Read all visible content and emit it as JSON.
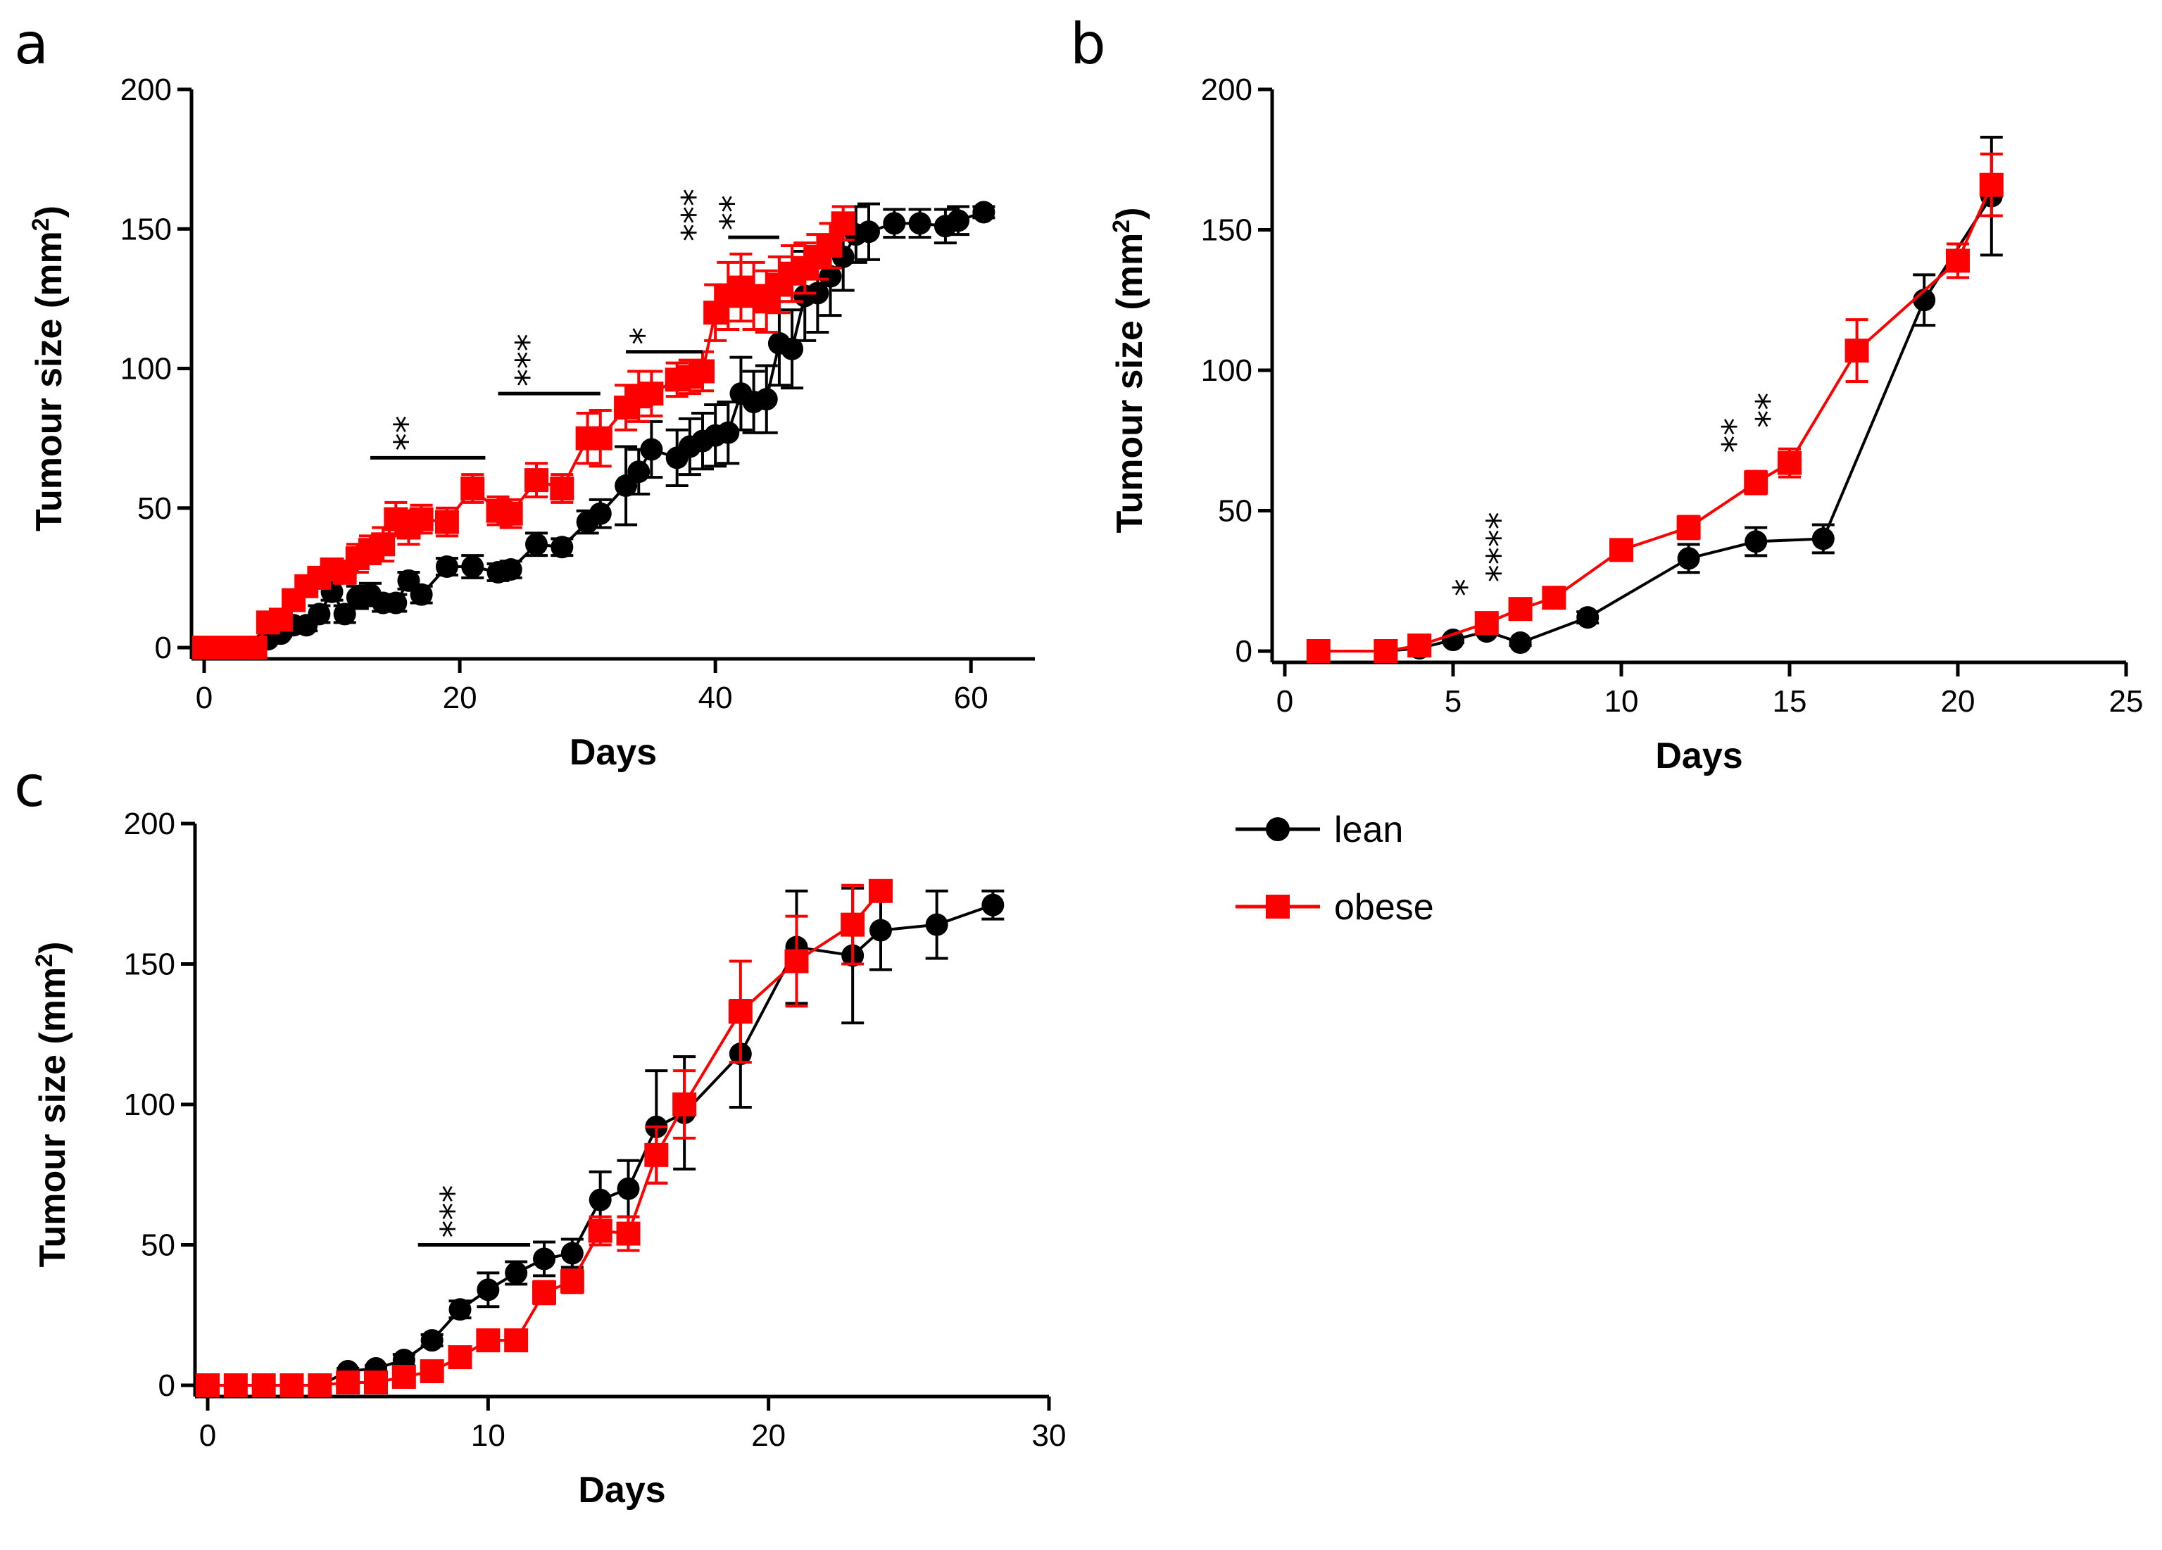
{
  "colors": {
    "lean": "#000000",
    "obese": "#ff0000",
    "axis": "#000000"
  },
  "legend": [
    {
      "key": "lean",
      "label": "lean",
      "marker": "circle"
    },
    {
      "key": "obese",
      "label": "obese",
      "marker": "square"
    }
  ],
  "chart_data": [
    {
      "panel": "a",
      "type": "line",
      "xlabel": "Days",
      "ylabel": "Tumour size (mm",
      "ylabel_sup": "2",
      "ylabel_close": ")",
      "xlim": [
        0,
        65
      ],
      "ylim": [
        0,
        200
      ],
      "xticks": [
        0,
        20,
        40,
        60
      ],
      "yticks": [
        0,
        50,
        100,
        150,
        200
      ],
      "series": [
        {
          "name": "lean",
          "x": [
            0,
            1,
            2,
            3,
            4,
            5,
            6,
            7,
            8,
            9,
            10,
            11,
            12,
            13,
            14,
            15,
            16,
            17,
            19,
            21,
            23,
            24,
            26,
            28,
            30,
            31,
            33,
            34,
            35,
            37,
            38,
            39,
            40,
            41,
            42,
            43,
            44,
            45,
            46,
            47,
            48,
            49,
            50,
            51,
            52,
            54,
            56,
            58,
            59,
            61
          ],
          "y": [
            0,
            0,
            0,
            0,
            0,
            3,
            5,
            8,
            8,
            12,
            20,
            12,
            18,
            19,
            16,
            16,
            24,
            19,
            29,
            29,
            27,
            28,
            37,
            36,
            45,
            48,
            58,
            63,
            71,
            68,
            72,
            74,
            76,
            77,
            91,
            88,
            89,
            109,
            107,
            126,
            127,
            133,
            140,
            148,
            149,
            152,
            152,
            151,
            153,
            156
          ],
          "err": [
            0,
            0,
            0,
            0,
            0,
            1,
            1,
            2,
            2,
            3,
            3,
            3,
            4,
            4,
            3,
            3,
            3,
            3,
            3,
            4,
            3,
            3,
            4,
            3,
            4,
            5,
            14,
            8,
            10,
            10,
            10,
            10,
            11,
            11,
            13,
            11,
            12,
            15,
            14,
            16,
            14,
            14,
            12,
            10,
            10,
            5,
            5,
            6,
            5,
            2
          ]
        },
        {
          "name": "obese",
          "x": [
            0,
            1,
            2,
            3,
            4,
            5,
            6,
            7,
            8,
            9,
            10,
            11,
            12,
            13,
            14,
            15,
            16,
            17,
            19,
            21,
            23,
            24,
            26,
            28,
            30,
            31,
            33,
            34,
            35,
            37,
            38,
            39,
            40,
            41,
            42,
            43,
            44,
            45,
            46,
            47,
            48,
            49,
            50
          ],
          "y": [
            0,
            0,
            0,
            0,
            0,
            9,
            10,
            17,
            22,
            25,
            28,
            27,
            32,
            35,
            37,
            46,
            43,
            46,
            45,
            57,
            49,
            48,
            60,
            57,
            75,
            75,
            86,
            90,
            91,
            96,
            97,
            99,
            120,
            126,
            129,
            126,
            124,
            130,
            134,
            136,
            140,
            144,
            152
          ],
          "err": [
            0,
            0,
            0,
            0,
            0,
            2,
            3,
            3,
            3,
            3,
            3,
            4,
            5,
            5,
            6,
            6,
            6,
            5,
            5,
            5,
            5,
            5,
            6,
            5,
            9,
            10,
            8,
            9,
            8,
            6,
            6,
            7,
            10,
            12,
            12,
            12,
            11,
            10,
            10,
            9,
            8,
            8,
            6
          ]
        }
      ],
      "significance": [
        {
          "label": "**",
          "x1": 13,
          "x2": 22,
          "y": 68
        },
        {
          "label": "***",
          "x1": 23,
          "x2": 31,
          "y": 91
        },
        {
          "label": "*",
          "x1": 33,
          "x2": 39,
          "y": 106
        },
        {
          "label": "***",
          "x1": 40,
          "x2": 40,
          "y": 143
        },
        {
          "label": "**",
          "x1": 41,
          "x2": 45,
          "y": 147
        }
      ]
    },
    {
      "panel": "b",
      "type": "line",
      "xlabel": "Days",
      "ylabel": "Tumour size (mm",
      "ylabel_sup": "2",
      "ylabel_close": ")",
      "xlim": [
        0,
        25
      ],
      "ylim": [
        0,
        200
      ],
      "xticks": [
        0,
        5,
        10,
        15,
        20,
        25
      ],
      "yticks": [
        0,
        50,
        100,
        150,
        200
      ],
      "series": [
        {
          "name": "lean",
          "x": [
            1,
            3,
            4,
            5,
            6,
            7,
            9,
            12,
            14,
            16,
            19,
            21
          ],
          "y": [
            0,
            0,
            1,
            4,
            7,
            3,
            12,
            33,
            39,
            40,
            125,
            162
          ],
          "err": [
            0,
            0,
            0.5,
            1,
            1,
            1,
            2,
            5,
            5,
            5,
            9,
            21
          ]
        },
        {
          "name": "obese",
          "x": [
            1,
            3,
            4,
            6,
            7,
            8,
            10,
            12,
            14,
            15,
            17,
            20,
            21
          ],
          "y": [
            0,
            0,
            2,
            10,
            15,
            19,
            36,
            44,
            60,
            67,
            107,
            139,
            166
          ],
          "err": [
            0,
            0,
            0.5,
            2,
            2,
            2,
            3,
            4,
            4,
            5,
            11,
            6,
            11
          ]
        }
      ],
      "significance": [
        {
          "label": "*",
          "x1": 6,
          "x2": 6,
          "y": 17
        },
        {
          "label": "****",
          "x1": 7,
          "x2": 7,
          "y": 22
        },
        {
          "label": "**",
          "x1": 14,
          "x2": 14,
          "y": 68
        },
        {
          "label": "**",
          "x1": 15,
          "x2": 15,
          "y": 77
        }
      ]
    },
    {
      "panel": "c",
      "type": "line",
      "xlabel": "Days",
      "ylabel": "Tumour size (mm",
      "ylabel_sup": "2",
      "ylabel_close": ")",
      "xlim": [
        0,
        30
      ],
      "ylim": [
        0,
        200
      ],
      "xticks": [
        0,
        10,
        20,
        30
      ],
      "yticks": [
        0,
        50,
        100,
        150,
        200
      ],
      "series": [
        {
          "name": "lean",
          "x": [
            0,
            1,
            2,
            3,
            4,
            5,
            6,
            7,
            8,
            9,
            10,
            11,
            12,
            13,
            14,
            15,
            16,
            17,
            19,
            21,
            23,
            24,
            26,
            28
          ],
          "y": [
            0,
            0,
            0,
            0,
            0,
            5,
            6,
            9,
            16,
            27,
            34,
            40,
            45,
            47,
            66,
            70,
            92,
            97,
            118,
            156,
            153,
            162,
            164,
            171
          ],
          "err": [
            0,
            0,
            0,
            0,
            0,
            1,
            1,
            2,
            2,
            3,
            6,
            4,
            6,
            5,
            10,
            10,
            20,
            20,
            19,
            20,
            24,
            14,
            12,
            5
          ]
        },
        {
          "name": "obese",
          "x": [
            0,
            1,
            2,
            3,
            4,
            5,
            6,
            7,
            8,
            9,
            10,
            11,
            12,
            13,
            14,
            15,
            16,
            17,
            19,
            21,
            23,
            24
          ],
          "y": [
            0,
            0,
            0,
            0,
            0,
            1,
            1,
            3,
            5,
            10,
            16,
            16,
            33,
            37,
            55,
            54,
            82,
            100,
            133,
            151,
            164,
            176
          ],
          "err": [
            0,
            0,
            0,
            0,
            0,
            0.5,
            0.5,
            1,
            1,
            2,
            2,
            2,
            4,
            4,
            5,
            6,
            10,
            12,
            18,
            16,
            14,
            3
          ]
        }
      ],
      "significance": [
        {
          "label": "***",
          "x1": 7.5,
          "x2": 11.5,
          "y": 50
        }
      ]
    }
  ]
}
